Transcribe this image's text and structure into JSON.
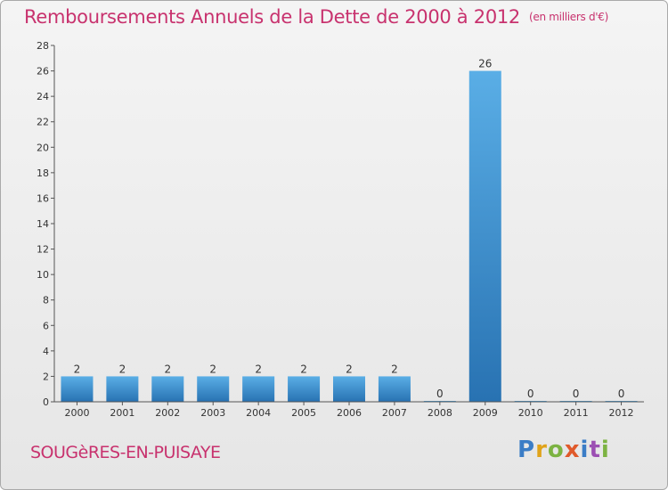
{
  "title": "Remboursements Annuels de la Dette de 2000 à 2012",
  "unit": "(en milliers d'€)",
  "town": "SOUGèRES-EN-PUISAYE",
  "brand": "Proxiti",
  "colors": {
    "title": "#c8326e",
    "bar_top": "#5aaee6",
    "bar_bottom": "#2872b2"
  },
  "chart_data": {
    "type": "bar",
    "title": "Remboursements Annuels de la Dette de 2000 à 2012",
    "ylabel": "",
    "xlabel": "",
    "categories": [
      "2000",
      "2001",
      "2002",
      "2003",
      "2004",
      "2005",
      "2006",
      "2007",
      "2008",
      "2009",
      "2010",
      "2011",
      "2012"
    ],
    "values": [
      2,
      2,
      2,
      2,
      2,
      2,
      2,
      2,
      0,
      26,
      0,
      0,
      0
    ],
    "ylim": [
      0,
      28
    ],
    "yticks": [
      0,
      2,
      4,
      6,
      8,
      10,
      12,
      14,
      16,
      18,
      20,
      22,
      24,
      26,
      28
    ],
    "grid": false,
    "legend": "none"
  }
}
